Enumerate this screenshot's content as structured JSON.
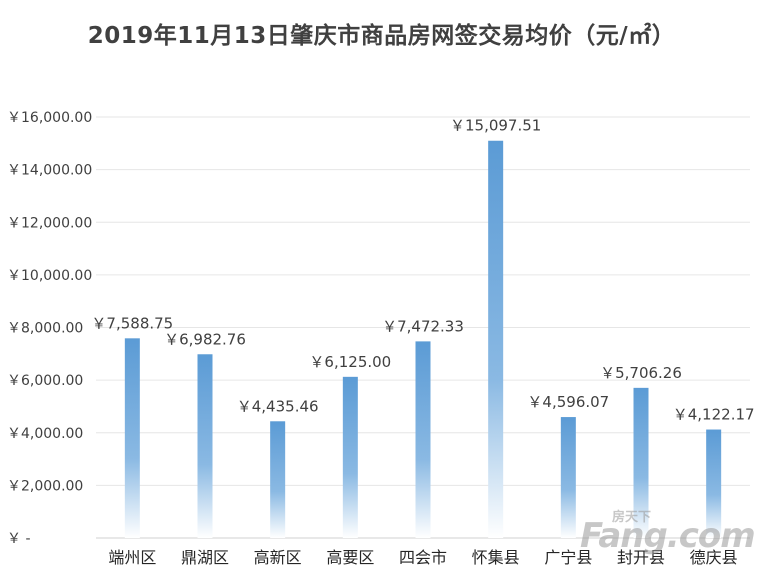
{
  "chart_data": {
    "type": "bar",
    "title": "2019年11月13日肇庆市商品房网签交易均价（元/㎡）",
    "categories": [
      "端州区",
      "鼎湖区",
      "高新区",
      "高要区",
      "四会市",
      "怀集县",
      "广宁县",
      "封开县",
      "德庆县"
    ],
    "values": [
      7588.75,
      6982.76,
      4435.46,
      6125.0,
      7472.33,
      15097.51,
      4596.07,
      5706.26,
      4122.17
    ],
    "data_labels": [
      "￥7,588.75",
      "￥6,982.76",
      "￥4,435.46",
      "￥6,125.00",
      "￥7,472.33",
      "￥15,097.51",
      "￥4,596.07",
      "￥5,706.26",
      "￥4,122.17"
    ],
    "ylim": [
      0,
      16000
    ],
    "y_ticks": [
      0,
      2000,
      4000,
      6000,
      8000,
      10000,
      12000,
      14000,
      16000
    ],
    "y_tick_labels": [
      "￥ -",
      "￥2,000.00",
      "￥4,000.00",
      "￥6,000.00",
      "￥8,000.00",
      "￥10,000.00",
      "￥12,000.00",
      "￥14,000.00",
      "￥16,000.00"
    ],
    "grid": true,
    "legend": "none",
    "bar_color": "#5b9bd5",
    "bar_fade_color": "#ffffff"
  },
  "watermark": {
    "brand": "Fang.com",
    "sub": "房天下"
  }
}
